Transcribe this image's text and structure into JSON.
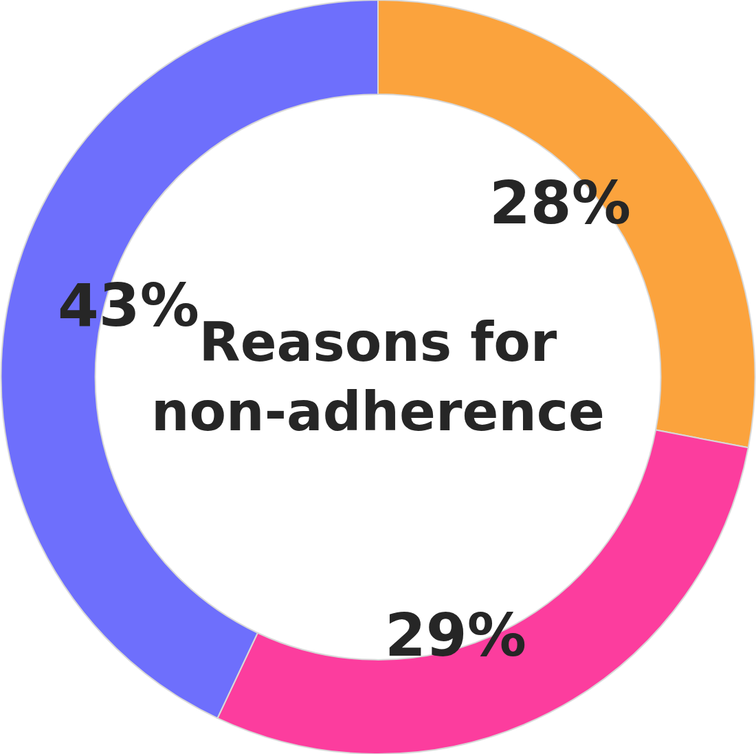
{
  "chart_data": {
    "type": "donut",
    "title": "Reasons for non-adherence",
    "categories": [
      null,
      null,
      null
    ],
    "values": [
      28,
      29,
      43
    ],
    "value_labels": [
      "28%",
      "29%",
      "43%"
    ],
    "colors": [
      "#fba33d",
      "#fc3d9e",
      "#6e6ffc"
    ]
  }
}
